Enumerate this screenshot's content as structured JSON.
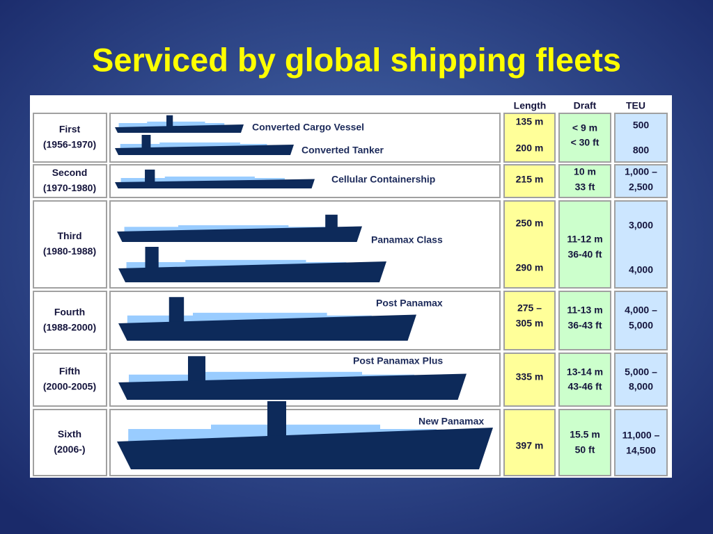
{
  "title": "Serviced by global shipping fleets",
  "table": {
    "headers": [
      "Length",
      "Draft",
      "TEU"
    ],
    "rows": [
      {
        "generation": "First",
        "years": "(1956-1970)",
        "ships": [
          "Converted Cargo Vessel",
          "Converted Tanker"
        ],
        "length": [
          "135 m",
          "200 m"
        ],
        "draft": [
          "< 9 m",
          "< 30 ft"
        ],
        "teu": [
          "500",
          "800"
        ]
      },
      {
        "generation": "Second",
        "years": "(1970-1980)",
        "ships": [
          "Cellular Containership"
        ],
        "length": [
          "215 m"
        ],
        "draft": [
          "10 m",
          "33 ft"
        ],
        "teu": [
          "1,000 –",
          "2,500"
        ]
      },
      {
        "generation": "Third",
        "years": "(1980-1988)",
        "ships": [
          "Panamax Class"
        ],
        "length": [
          "250 m",
          "290 m"
        ],
        "draft": [
          "11-12 m",
          "36-40 ft"
        ],
        "teu": [
          "3,000",
          "4,000"
        ]
      },
      {
        "generation": "Fourth",
        "years": "(1988-2000)",
        "ships": [
          "Post Panamax"
        ],
        "length": [
          "275 –",
          "305 m"
        ],
        "draft": [
          "11-13 m",
          "36-43 ft"
        ],
        "teu": [
          "4,000 –",
          "5,000"
        ]
      },
      {
        "generation": "Fifth",
        "years": "(2000-2005)",
        "ships": [
          "Post Panamax Plus"
        ],
        "length": [
          "335 m"
        ],
        "draft": [
          "13-14 m",
          "43-46 ft"
        ],
        "teu": [
          "5,000 –",
          "8,000"
        ]
      },
      {
        "generation": "Sixth",
        "years": "(2006-)",
        "ships": [
          "New Panamax"
        ],
        "length": [
          "397 m"
        ],
        "draft": [
          "15.5 m",
          "50 ft"
        ],
        "teu": [
          "11,000 –",
          "14,500"
        ]
      }
    ]
  }
}
